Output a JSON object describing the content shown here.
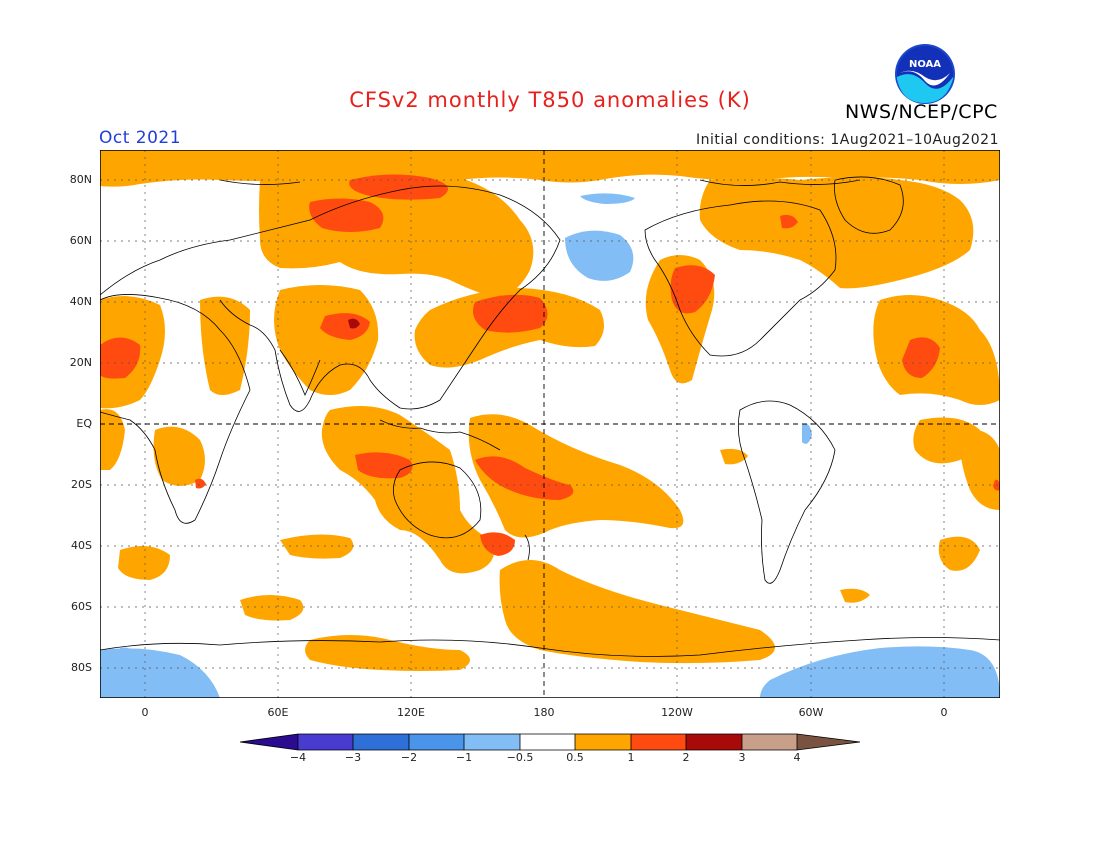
{
  "title": "CFSv2 monthly T850 anomalies (K)",
  "agency": "NWS/NCEP/CPC",
  "logo_text": "NOAA",
  "month": "Oct 2021",
  "initial_conditions": "Initial conditions: 1Aug2021–10Aug2021",
  "lat_labels": [
    "80N",
    "60N",
    "40N",
    "20N",
    "EQ",
    "20S",
    "40S",
    "60S",
    "80S"
  ],
  "lon_labels": [
    "0",
    "60E",
    "120E",
    "180",
    "120W",
    "60W",
    "0"
  ],
  "colorbar": {
    "labels": [
      "−4",
      "−3",
      "−2",
      "−1",
      "−0.5",
      "0.5",
      "1",
      "2",
      "3",
      "4"
    ],
    "colors": [
      "#2b0b8f",
      "#4a3bd0",
      "#2f6fd8",
      "#4a94ea",
      "#82bdf6",
      "#ffffff",
      "#ffa500",
      "#ff4a10",
      "#a80a0a",
      "#c8a08a",
      "#7a5240"
    ]
  },
  "colors": {
    "ocean_land_base": "#ffffff",
    "warm1": "#ffa500",
    "warm2": "#ff4a10",
    "warm3": "#a80a0a",
    "cool1": "#82bdf6",
    "title": "#e8201c",
    "month": "#1f3fd8"
  }
}
